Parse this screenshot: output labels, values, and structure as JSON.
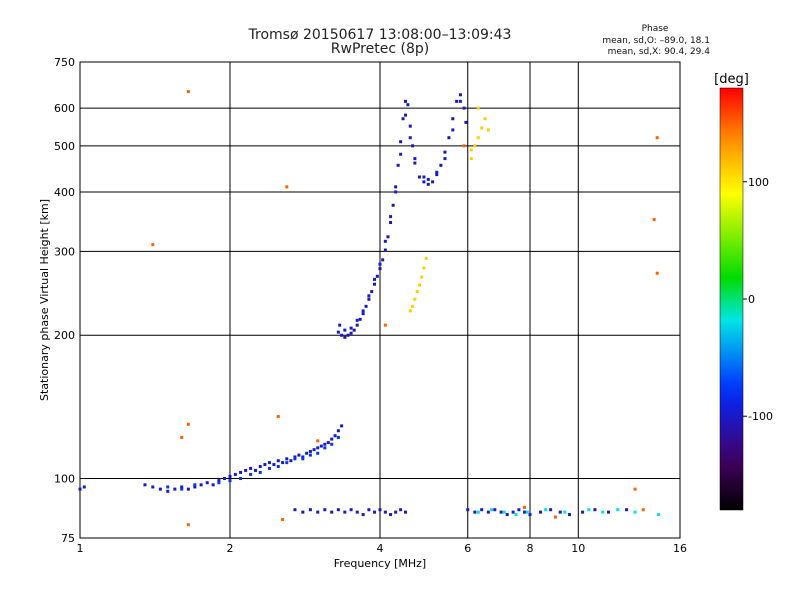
{
  "chart_data": {
    "type": "scatter",
    "title": "Tromsø 20150617 13:08:00–13:09:43",
    "subtitle": "RwPretec (8p)",
    "xlabel": "Frequency [MHz]",
    "ylabel": "Stationary phase Virtual Height [km]",
    "x_scale": "log2",
    "y_scale": "log",
    "xlim": [
      1,
      16
    ],
    "ylim": [
      75,
      750
    ],
    "x_ticks": [
      1,
      2,
      4,
      6,
      8,
      10,
      16
    ],
    "x_tick_labels": [
      "1",
      "2",
      "4",
      "6",
      "8",
      "10",
      "16"
    ],
    "y_ticks": [
      75,
      100,
      200,
      300,
      400,
      500,
      600,
      750
    ],
    "y_tick_labels": [
      "75",
      "100",
      "200",
      "300",
      "400",
      "500",
      "600",
      "750"
    ],
    "grid": true,
    "phase_info": {
      "title": "Phase",
      "line_o": "mean, sd,O: –89.0, 18.1",
      "line_x": "mean, sd,X:  90.4, 29.4"
    },
    "colorbar": {
      "label": "[deg]",
      "range": [
        -180,
        180
      ],
      "ticks": [
        100,
        0,
        -100
      ],
      "tick_labels": [
        "100",
        "0",
        "-100"
      ]
    },
    "series": [
      {
        "points": [
          [
            1.0,
            95
          ],
          [
            1.02,
            96
          ],
          [
            1.35,
            97
          ],
          [
            1.4,
            96
          ],
          [
            1.45,
            95
          ],
          [
            1.5,
            94
          ],
          [
            1.55,
            95
          ],
          [
            1.6,
            96
          ],
          [
            1.65,
            95
          ],
          [
            1.7,
            96
          ],
          [
            1.75,
            97
          ],
          [
            1.8,
            98
          ],
          [
            1.85,
            97
          ],
          [
            1.9,
            99
          ],
          [
            1.95,
            100
          ],
          [
            2.0,
            101
          ],
          [
            2.05,
            102
          ],
          [
            2.1,
            103
          ],
          [
            2.15,
            104
          ],
          [
            2.2,
            105
          ],
          [
            2.25,
            104
          ],
          [
            2.3,
            106
          ],
          [
            2.35,
            107
          ],
          [
            2.4,
            108
          ],
          [
            2.45,
            107
          ],
          [
            2.5,
            109
          ],
          [
            2.55,
            108
          ],
          [
            2.6,
            110
          ],
          [
            2.65,
            109
          ],
          [
            2.7,
            111
          ],
          [
            2.75,
            112
          ],
          [
            2.8,
            111
          ],
          [
            2.85,
            113
          ],
          [
            2.9,
            114
          ],
          [
            2.95,
            115
          ],
          [
            3.0,
            116
          ],
          [
            3.05,
            117
          ],
          [
            3.1,
            118
          ],
          [
            3.15,
            119
          ],
          [
            3.2,
            121
          ],
          [
            3.25,
            123
          ],
          [
            3.3,
            126
          ],
          [
            3.35,
            129
          ]
        ],
        "phase": -100
      },
      {
        "points": [
          [
            1.5,
            96
          ],
          [
            1.6,
            95
          ],
          [
            1.7,
            97
          ],
          [
            1.9,
            98
          ],
          [
            2.0,
            99
          ],
          [
            2.1,
            100
          ],
          [
            2.2,
            102
          ],
          [
            2.3,
            103
          ],
          [
            2.4,
            105
          ],
          [
            2.5,
            106
          ],
          [
            2.6,
            108
          ],
          [
            2.7,
            110
          ],
          [
            2.8,
            110
          ],
          [
            2.9,
            112
          ],
          [
            3.0,
            113
          ],
          [
            3.1,
            116
          ],
          [
            3.2,
            118
          ],
          [
            3.3,
            122
          ]
        ],
        "phase": -75
      },
      {
        "points": [
          [
            3.3,
            203
          ],
          [
            3.35,
            200
          ],
          [
            3.4,
            198
          ],
          [
            3.45,
            200
          ],
          [
            3.5,
            202
          ],
          [
            3.55,
            205
          ],
          [
            3.6,
            210
          ],
          [
            3.65,
            216
          ],
          [
            3.7,
            222
          ],
          [
            3.75,
            230
          ],
          [
            3.8,
            238
          ],
          [
            3.85,
            247
          ],
          [
            3.9,
            256
          ],
          [
            3.95,
            266
          ],
          [
            4.0,
            276
          ],
          [
            4.05,
            288
          ],
          [
            4.1,
            302
          ],
          [
            4.15,
            322
          ],
          [
            4.2,
            345
          ],
          [
            4.25,
            375
          ],
          [
            4.3,
            410
          ],
          [
            4.35,
            455
          ],
          [
            4.4,
            510
          ],
          [
            4.45,
            570
          ],
          [
            4.5,
            620
          ],
          [
            4.55,
            610
          ],
          [
            4.6,
            550
          ],
          [
            4.65,
            500
          ],
          [
            4.7,
            460
          ],
          [
            4.8,
            430
          ],
          [
            4.9,
            420
          ],
          [
            5.0,
            415
          ],
          [
            5.1,
            420
          ],
          [
            5.2,
            435
          ],
          [
            5.3,
            455
          ],
          [
            5.4,
            485
          ],
          [
            5.5,
            520
          ],
          [
            5.6,
            570
          ],
          [
            5.7,
            620
          ],
          [
            5.8,
            640
          ],
          [
            5.9,
            600
          ],
          [
            5.95,
            560
          ]
        ],
        "phase": -105
      },
      {
        "points": [
          [
            3.32,
            210
          ],
          [
            3.4,
            205
          ],
          [
            3.5,
            207
          ],
          [
            3.6,
            215
          ],
          [
            3.7,
            225
          ],
          [
            3.8,
            242
          ],
          [
            3.9,
            262
          ],
          [
            4.0,
            282
          ],
          [
            4.1,
            315
          ],
          [
            4.2,
            355
          ],
          [
            4.3,
            400
          ],
          [
            4.4,
            480
          ],
          [
            4.5,
            580
          ],
          [
            4.6,
            520
          ],
          [
            4.7,
            470
          ],
          [
            4.9,
            430
          ],
          [
            5.0,
            425
          ],
          [
            5.2,
            440
          ],
          [
            5.4,
            470
          ],
          [
            5.6,
            540
          ],
          [
            5.8,
            620
          ]
        ],
        "phase": -95
      },
      {
        "points": [
          [
            4.6,
            225
          ],
          [
            4.65,
            230
          ],
          [
            4.7,
            238
          ],
          [
            4.75,
            247
          ],
          [
            4.8,
            255
          ],
          [
            4.85,
            265
          ],
          [
            4.9,
            277
          ],
          [
            4.95,
            290
          ],
          [
            6.1,
            470
          ],
          [
            6.2,
            500
          ],
          [
            6.3,
            520
          ],
          [
            6.4,
            545
          ],
          [
            6.5,
            570
          ],
          [
            6.6,
            540
          ],
          [
            6.3,
            600
          ],
          [
            6.1,
            490
          ]
        ],
        "phase": 110
      },
      {
        "points": [
          [
            2.7,
            86
          ],
          [
            2.8,
            85
          ],
          [
            2.9,
            86
          ],
          [
            3.0,
            85
          ],
          [
            3.1,
            86
          ],
          [
            3.2,
            85
          ],
          [
            3.3,
            86
          ],
          [
            3.4,
            85
          ],
          [
            3.5,
            86
          ],
          [
            3.6,
            85
          ],
          [
            3.7,
            84
          ],
          [
            3.8,
            86
          ],
          [
            3.9,
            85
          ],
          [
            4.0,
            86
          ],
          [
            4.1,
            85
          ],
          [
            4.2,
            84
          ],
          [
            4.3,
            85
          ],
          [
            4.4,
            86
          ],
          [
            4.5,
            85
          ],
          [
            6.0,
            86
          ],
          [
            6.2,
            85
          ],
          [
            6.4,
            86
          ],
          [
            6.6,
            85
          ],
          [
            6.8,
            86
          ],
          [
            7.0,
            85
          ],
          [
            7.2,
            84
          ],
          [
            7.4,
            85
          ],
          [
            7.6,
            86
          ],
          [
            7.8,
            85
          ],
          [
            8.0,
            84
          ],
          [
            8.4,
            85
          ],
          [
            8.8,
            86
          ],
          [
            9.2,
            85
          ],
          [
            9.6,
            84
          ],
          [
            10.2,
            85
          ],
          [
            10.8,
            86
          ],
          [
            11.5,
            85
          ],
          [
            12.5,
            86
          ]
        ],
        "phase": -100
      },
      {
        "points": [
          [
            6.3,
            85
          ],
          [
            6.7,
            86
          ],
          [
            7.1,
            85
          ],
          [
            7.5,
            84
          ],
          [
            7.9,
            85
          ],
          [
            8.6,
            86
          ],
          [
            9.4,
            85
          ],
          [
            10.5,
            86
          ],
          [
            11.2,
            85
          ],
          [
            12.0,
            86
          ],
          [
            13.0,
            85
          ],
          [
            14.5,
            84
          ]
        ],
        "phase": -20
      },
      {
        "points": [
          [
            1.65,
            650
          ],
          [
            1.4,
            310
          ],
          [
            2.6,
            410
          ],
          [
            1.6,
            122
          ],
          [
            1.65,
            130
          ],
          [
            2.5,
            135
          ],
          [
            3.0,
            120
          ],
          [
            14.2,
            350
          ],
          [
            14.4,
            270
          ],
          [
            14.4,
            520
          ],
          [
            1.65,
            80
          ],
          [
            2.55,
            82
          ],
          [
            7.8,
            87
          ],
          [
            9.0,
            83
          ],
          [
            13.5,
            86
          ],
          [
            13.0,
            95
          ],
          [
            4.1,
            210
          ],
          [
            5.9,
            500
          ]
        ],
        "phase": 150
      }
    ]
  }
}
